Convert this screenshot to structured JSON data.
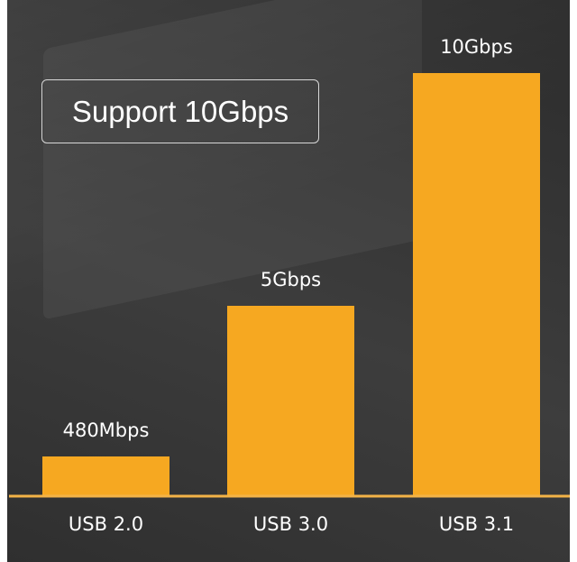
{
  "title": "Support 10Gbps",
  "colors": {
    "bar": "#f6a821",
    "axis": "#f3b347",
    "background": "#363636",
    "text": "#ffffff"
  },
  "chart_data": {
    "type": "bar",
    "title": "Support 10Gbps",
    "categories": [
      "USB 2.0",
      "USB 3.0",
      "USB 3.1"
    ],
    "values": [
      0.48,
      5,
      10
    ],
    "unit": "Gbps",
    "data_labels": [
      "480Mbps",
      "5Gbps",
      "10Gbps"
    ],
    "grid": false,
    "legend": "none",
    "ylim": [
      0,
      10
    ]
  }
}
